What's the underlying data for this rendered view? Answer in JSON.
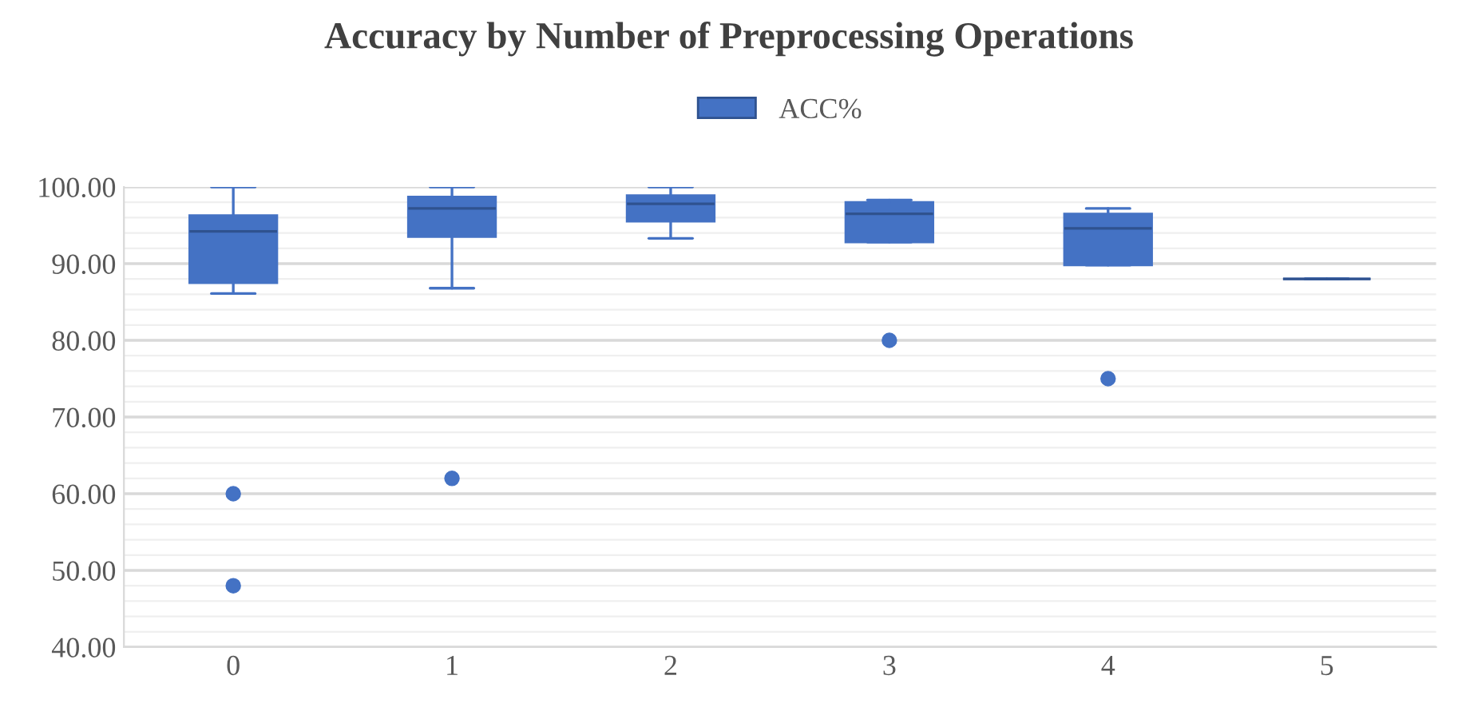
{
  "chart_data": {
    "type": "box",
    "title": "Accuracy by Number of Preprocessing Operations",
    "categories": [
      "0",
      "1",
      "2",
      "3",
      "4",
      "5"
    ],
    "series": [
      {
        "name": "ACC%",
        "color": "#4472c4",
        "boxes": [
          {
            "low": 86.1,
            "q1": 87.5,
            "median": 94.2,
            "q3": 96.3,
            "high": 100,
            "outliers": [
              60,
              48
            ]
          },
          {
            "low": 86.8,
            "q1": 93.5,
            "median": 97.2,
            "q3": 98.7,
            "high": 100,
            "outliers": [
              62
            ]
          },
          {
            "low": 93.3,
            "q1": 95.5,
            "median": 97.8,
            "q3": 98.9,
            "high": 100
          },
          {
            "low": 92.8,
            "q1": 92.8,
            "median": 96.5,
            "q3": 98.0,
            "high": 98.3,
            "outliers": [
              80
            ]
          },
          {
            "low": 89.8,
            "q1": 89.8,
            "median": 94.6,
            "q3": 96.5,
            "high": 97.2,
            "outliers": [
              75
            ]
          },
          {
            "low": 88,
            "q1": 88,
            "median": 88,
            "q3": 88,
            "high": 88
          }
        ]
      }
    ],
    "ylim": [
      40,
      100
    ],
    "yticks": [
      {
        "value": 40,
        "label": "40.00"
      },
      {
        "value": 42,
        "label": null
      },
      {
        "value": 44,
        "label": null
      },
      {
        "value": 46,
        "label": null
      },
      {
        "value": 48,
        "label": null
      },
      {
        "value": 50,
        "label": "50.00"
      },
      {
        "value": 52,
        "label": null
      },
      {
        "value": 54,
        "label": null
      },
      {
        "value": 56,
        "label": null
      },
      {
        "value": 58,
        "label": null
      },
      {
        "value": 60,
        "label": "60.00"
      },
      {
        "value": 62,
        "label": null
      },
      {
        "value": 64,
        "label": null
      },
      {
        "value": 66,
        "label": null
      },
      {
        "value": 68,
        "label": null
      },
      {
        "value": 70,
        "label": "70.00"
      },
      {
        "value": 72,
        "label": null
      },
      {
        "value": 74,
        "label": null
      },
      {
        "value": 76,
        "label": null
      },
      {
        "value": 78,
        "label": null
      },
      {
        "value": 80,
        "label": "80.00"
      },
      {
        "value": 82,
        "label": null
      },
      {
        "value": 84,
        "label": null
      },
      {
        "value": 86,
        "label": null
      },
      {
        "value": 88,
        "label": null
      },
      {
        "value": 90,
        "label": "90.00"
      },
      {
        "value": 92,
        "label": null
      },
      {
        "value": 94,
        "label": null
      },
      {
        "value": 96,
        "label": null
      },
      {
        "value": 98,
        "label": null
      },
      {
        "value": 100,
        "label": "100.00"
      }
    ],
    "grid": true,
    "legend": "top"
  }
}
